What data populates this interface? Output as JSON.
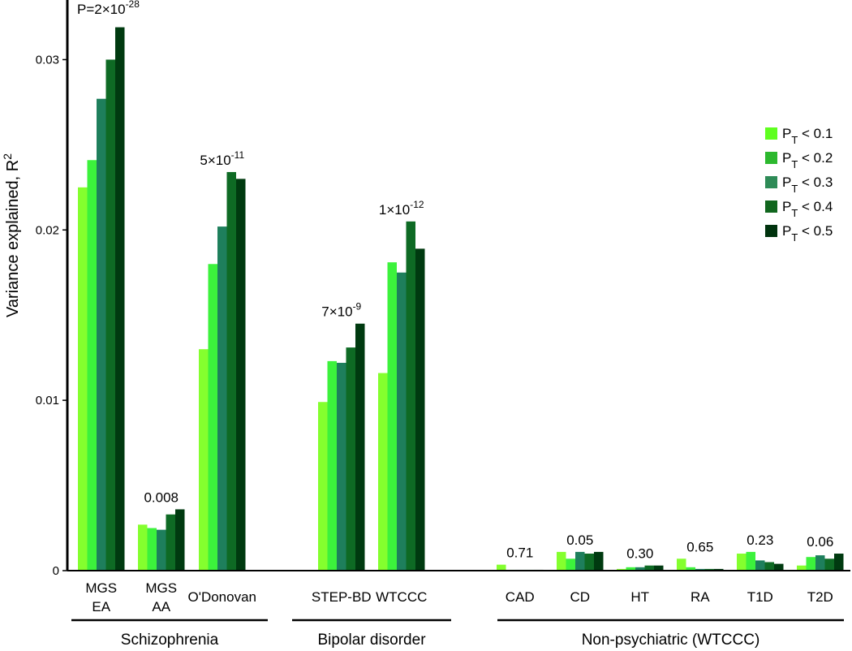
{
  "chart_data": {
    "type": "bar",
    "ylabel": "Variance explained, R",
    "ylabel_sup": "2",
    "ylim": [
      0,
      0.0335
    ],
    "yticks": [
      {
        "value": 0,
        "label": "0"
      },
      {
        "value": 0.01,
        "label": "0.01"
      },
      {
        "value": 0.02,
        "label": "0.02"
      },
      {
        "value": 0.03,
        "label": "0.03"
      }
    ],
    "legend_position": "right",
    "legend": [
      {
        "main": "P",
        "sub": "T",
        "rest": "< 0.1",
        "color": "#5fff1f"
      },
      {
        "main": "P",
        "sub": "T",
        "rest": "< 0.2",
        "color": "#2cb82e"
      },
      {
        "main": "P",
        "sub": "T",
        "rest": "< 0.3",
        "color": "#2e8b57"
      },
      {
        "main": "P",
        "sub": "T",
        "rest": "< 0.4",
        "color": "#11661e"
      },
      {
        "main": "P",
        "sub": "T",
        "rest": "< 0.5",
        "color": "#00330e"
      }
    ],
    "bar_colors": [
      "#84ff2e",
      "#3cf23c",
      "#1e7f5c",
      "#0e6a24",
      "#003a10"
    ],
    "categories": [
      {
        "lines": [
          "MGS",
          "EA"
        ],
        "values": [
          0.0225,
          0.0241,
          0.0277,
          0.03,
          0.0319
        ],
        "annotation": {
          "base": "P=2×10",
          "sup": "-28"
        }
      },
      {
        "lines": [
          "MGS",
          "AA"
        ],
        "values": [
          0.0027,
          0.0025,
          0.0024,
          0.0033,
          0.0036
        ],
        "annotation": {
          "base": "0.008",
          "sup": ""
        }
      },
      {
        "lines": [
          "O'Donovan"
        ],
        "values": [
          0.013,
          0.018,
          0.0202,
          0.0234,
          0.023
        ],
        "annotation": {
          "base": "5×10",
          "sup": "-11"
        }
      },
      {
        "lines": [
          "STEP-BD"
        ],
        "values": [
          0.0099,
          0.0123,
          0.0122,
          0.0131,
          0.0145
        ],
        "annotation": {
          "base": "7×10",
          "sup": "-9"
        }
      },
      {
        "lines": [
          "WTCCC"
        ],
        "values": [
          0.0116,
          0.0181,
          0.0175,
          0.0205,
          0.0189
        ],
        "annotation": {
          "base": "1×10",
          "sup": "-12"
        }
      },
      {
        "lines": [
          "CAD"
        ],
        "values": [
          0.00035,
          5e-05,
          5e-05,
          5e-05,
          5e-05
        ],
        "annotation": {
          "base": "0.71",
          "sup": ""
        }
      },
      {
        "lines": [
          "CD"
        ],
        "values": [
          0.0011,
          0.0007,
          0.0011,
          0.001,
          0.0011
        ],
        "annotation": {
          "base": "0.05",
          "sup": ""
        }
      },
      {
        "lines": [
          "HT"
        ],
        "values": [
          0.0001,
          0.0002,
          0.0002,
          0.0003,
          0.0003
        ],
        "annotation": {
          "base": "0.30",
          "sup": ""
        }
      },
      {
        "lines": [
          "RA"
        ],
        "values": [
          0.0007,
          0.0002,
          0.0001,
          0.0001,
          0.0001
        ],
        "annotation": {
          "base": "0.65",
          "sup": ""
        }
      },
      {
        "lines": [
          "T1D"
        ],
        "values": [
          0.001,
          0.0011,
          0.0006,
          0.0005,
          0.0004
        ],
        "annotation": {
          "base": "0.23",
          "sup": ""
        }
      },
      {
        "lines": [
          "T2D"
        ],
        "values": [
          0.0003,
          0.0008,
          0.0009,
          0.0007,
          0.001
        ],
        "annotation": {
          "base": "0.06",
          "sup": ""
        }
      }
    ],
    "groups": [
      {
        "label": "Schizophrenia",
        "first": 0,
        "last": 2
      },
      {
        "label": "Bipolar disorder",
        "first": 3,
        "last": 4
      },
      {
        "label": "Non-psychiatric (WTCCC)",
        "first": 5,
        "last": 10
      }
    ]
  }
}
